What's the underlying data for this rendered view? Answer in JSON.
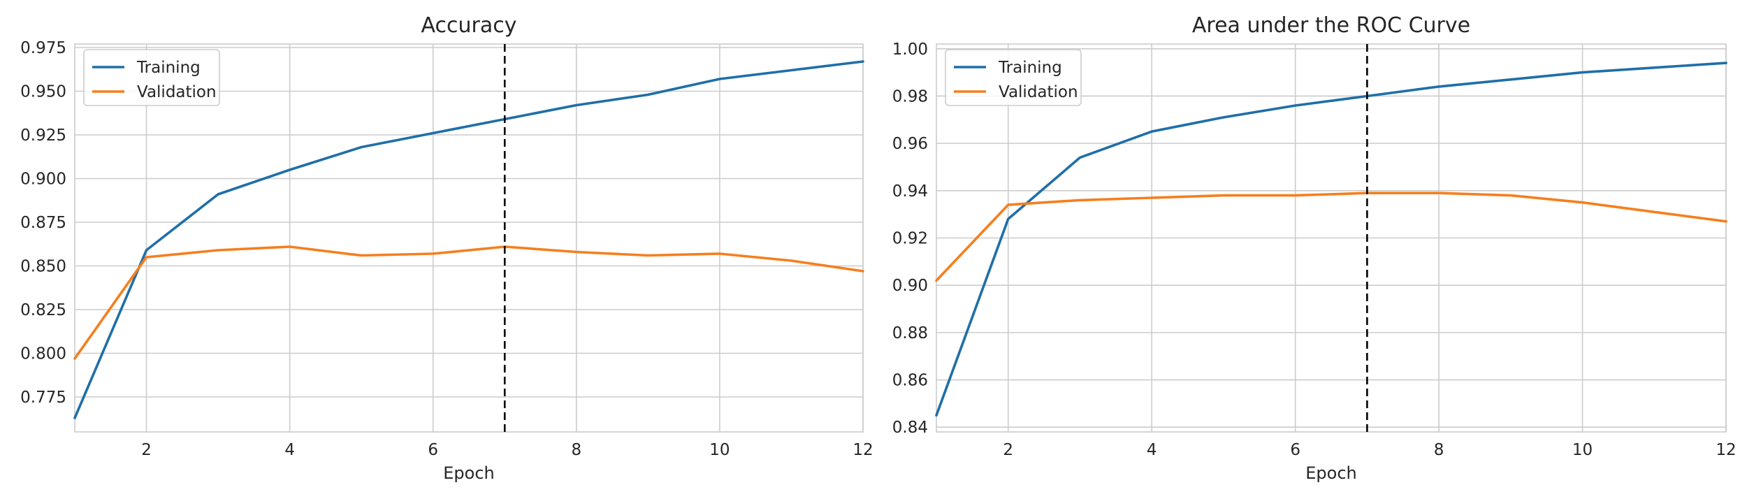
{
  "chart_data": [
    {
      "type": "line",
      "title": "Accuracy",
      "xlabel": "Epoch",
      "ylabel": "",
      "xlim": [
        1,
        12
      ],
      "ylim": [
        0.755,
        0.977
      ],
      "xticks": [
        2,
        4,
        6,
        8,
        10,
        12
      ],
      "xtick_labels": [
        "2",
        "4",
        "6",
        "8",
        "10",
        "12"
      ],
      "yticks": [
        0.775,
        0.8,
        0.825,
        0.85,
        0.875,
        0.9,
        0.925,
        0.95,
        0.975
      ],
      "ytick_labels": [
        "0.775",
        "0.800",
        "0.825",
        "0.850",
        "0.875",
        "0.900",
        "0.925",
        "0.950",
        "0.975"
      ],
      "grid": true,
      "legend": "top-left",
      "vline_x": 7,
      "x": [
        1,
        2,
        3,
        4,
        5,
        6,
        7,
        8,
        9,
        10,
        11,
        12
      ],
      "series": [
        {
          "name": "Training",
          "color": "#1f6fa8",
          "values": [
            0.763,
            0.859,
            0.891,
            0.905,
            0.918,
            0.926,
            0.934,
            0.942,
            0.948,
            0.957,
            0.962,
            0.967
          ]
        },
        {
          "name": "Validation",
          "color": "#f57f1e",
          "values": [
            0.797,
            0.855,
            0.859,
            0.861,
            0.856,
            0.857,
            0.861,
            0.858,
            0.856,
            0.857,
            0.853,
            0.847
          ]
        }
      ]
    },
    {
      "type": "line",
      "title": "Area under the ROC Curve",
      "xlabel": "Epoch",
      "ylabel": "",
      "xlim": [
        1,
        12
      ],
      "ylim": [
        0.838,
        1.002
      ],
      "xticks": [
        2,
        4,
        6,
        8,
        10,
        12
      ],
      "xtick_labels": [
        "2",
        "4",
        "6",
        "8",
        "10",
        "12"
      ],
      "yticks": [
        0.84,
        0.86,
        0.88,
        0.9,
        0.92,
        0.94,
        0.96,
        0.98,
        1.0
      ],
      "ytick_labels": [
        "0.84",
        "0.86",
        "0.88",
        "0.90",
        "0.92",
        "0.94",
        "0.96",
        "0.98",
        "1.00"
      ],
      "grid": true,
      "legend": "top-left",
      "vline_x": 7,
      "x": [
        1,
        2,
        3,
        4,
        5,
        6,
        7,
        8,
        9,
        10,
        11,
        12
      ],
      "series": [
        {
          "name": "Training",
          "color": "#1f6fa8",
          "values": [
            0.845,
            0.928,
            0.954,
            0.965,
            0.971,
            0.976,
            0.98,
            0.984,
            0.987,
            0.99,
            0.992,
            0.994
          ]
        },
        {
          "name": "Validation",
          "color": "#f57f1e",
          "values": [
            0.902,
            0.934,
            0.936,
            0.937,
            0.938,
            0.938,
            0.939,
            0.939,
            0.938,
            0.935,
            0.931,
            0.927
          ]
        }
      ]
    }
  ]
}
